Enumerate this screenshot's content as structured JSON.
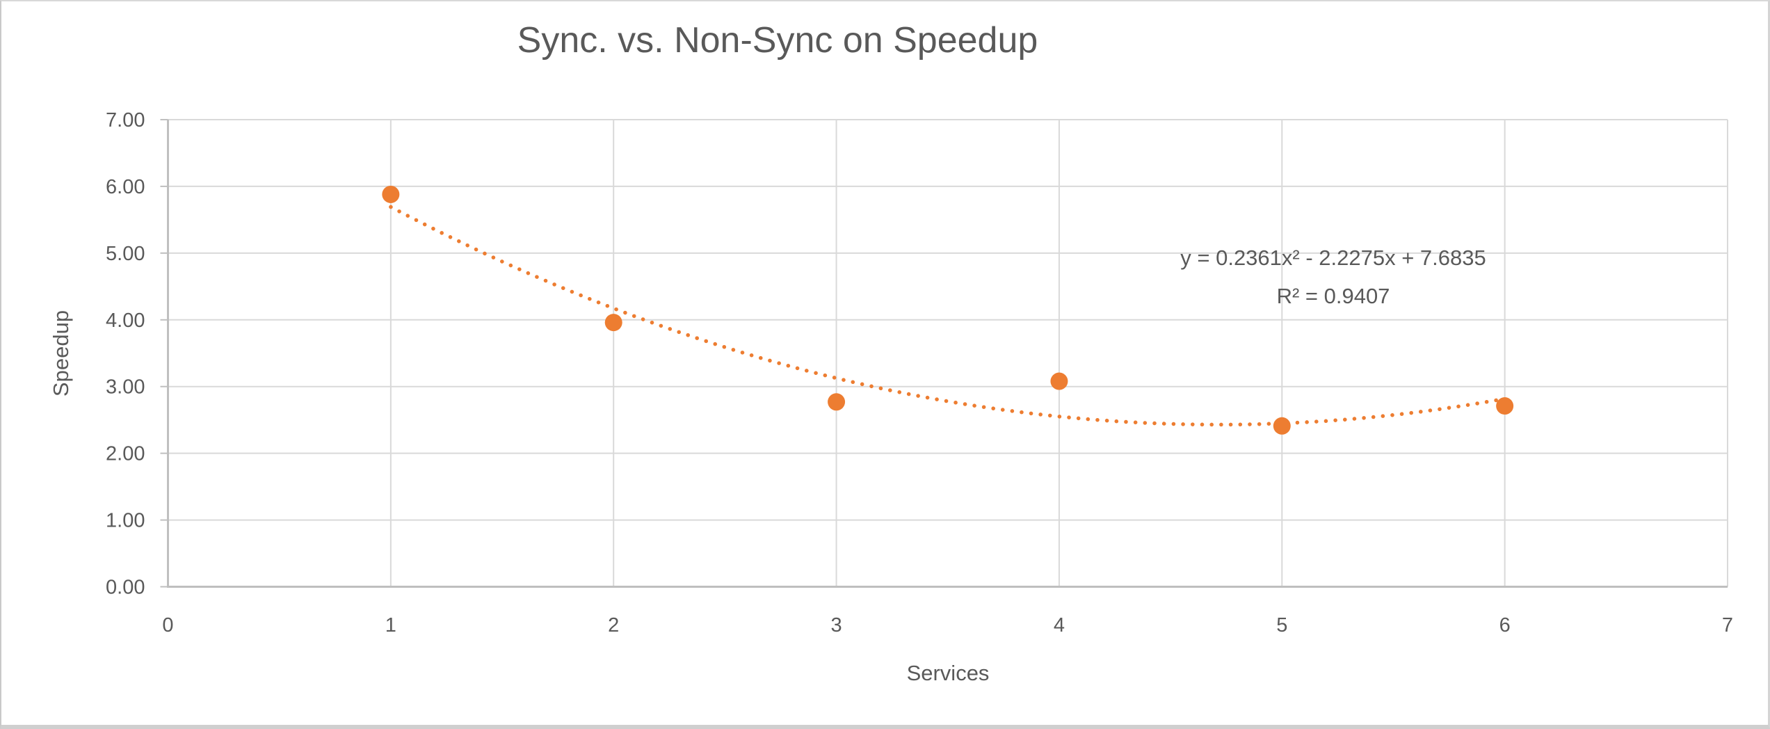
{
  "window": {
    "background": "#ffffff",
    "frame_border_color": "#d4d4d4"
  },
  "colors": {
    "accent_orange": "#ED7D31",
    "gridline": "#d9d9d9",
    "axis_line": "#bfbfbf",
    "text_gray": "#595959"
  },
  "chart_data": {
    "type": "scatter",
    "title": "Sync. vs. Non-Sync on Speedup",
    "xlabel": "Services",
    "ylabel": "Speedup",
    "xlim": [
      0,
      7
    ],
    "ylim": [
      0,
      7
    ],
    "x_ticks": [
      "0",
      "1",
      "2",
      "3",
      "4",
      "5",
      "6",
      "7"
    ],
    "y_ticks": [
      "0.00",
      "1.00",
      "2.00",
      "3.00",
      "4.00",
      "5.00",
      "6.00",
      "7.00"
    ],
    "grid": true,
    "legend": "none",
    "series": [
      {
        "name": "Speedup",
        "marker": "circle",
        "color": "#ED7D31",
        "x": [
          1,
          2,
          3,
          4,
          5,
          6
        ],
        "y": [
          5.88,
          3.96,
          2.77,
          3.08,
          2.41,
          2.71
        ]
      }
    ],
    "trendline": {
      "type": "polynomial",
      "order": 2,
      "coefficients": {
        "a": 0.2361,
        "b": -2.2275,
        "c": 7.6835
      },
      "x_range": [
        1,
        6
      ],
      "style": "dotted",
      "color": "#ED7D31",
      "equation": "y = 0.2361x² - 2.2275x + 7.6835",
      "r_squared_label": "R² = 0.9407"
    }
  }
}
